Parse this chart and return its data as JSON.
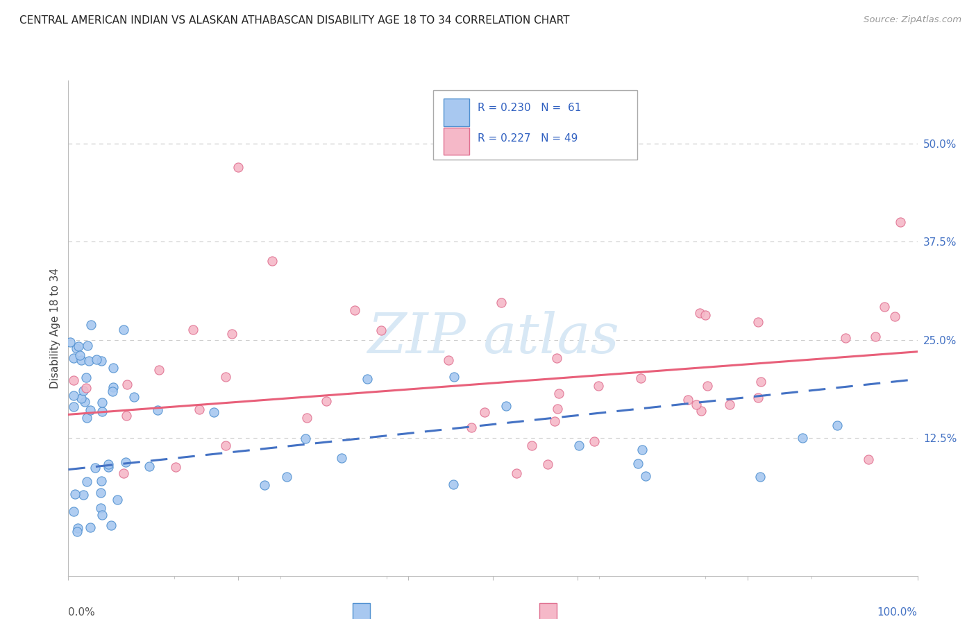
{
  "title": "CENTRAL AMERICAN INDIAN VS ALASKAN ATHABASCAN DISABILITY AGE 18 TO 34 CORRELATION CHART",
  "source": "Source: ZipAtlas.com",
  "ylabel": "Disability Age 18 to 34",
  "yticks_labels": [
    "50.0%",
    "37.5%",
    "25.0%",
    "12.5%"
  ],
  "ytick_vals": [
    0.5,
    0.375,
    0.25,
    0.125
  ],
  "legend_r1": "R = 0.230",
  "legend_n1": "N =  61",
  "legend_r2": "R = 0.227",
  "legend_n2": "N = 49",
  "color_blue_fill": "#A8C8F0",
  "color_pink_fill": "#F5B8C8",
  "color_blue_edge": "#5090D0",
  "color_pink_edge": "#E07090",
  "color_blue_line": "#4472C4",
  "color_pink_line": "#E8607A",
  "legend_text_color": "#3060C0",
  "watermark_color": "#D8E8F5",
  "ytick_color": "#4472C4",
  "xmax_label_color": "#4472C4",
  "blue_trend": [
    0.0,
    0.085,
    1.0,
    0.2
  ],
  "pink_trend": [
    0.0,
    0.155,
    1.0,
    0.235
  ],
  "ymin": -0.05,
  "ymax": 0.58
}
